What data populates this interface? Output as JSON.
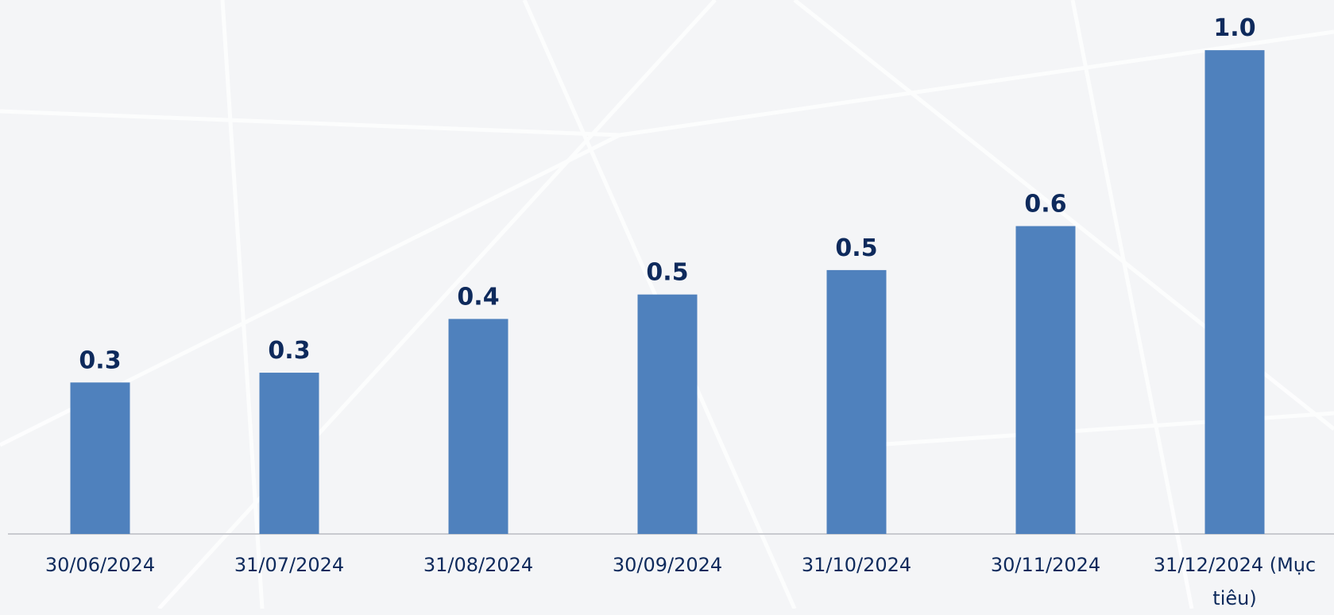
{
  "chart_data": {
    "type": "bar",
    "categories": [
      "30/06/2024",
      "31/07/2024",
      "31/08/2024",
      "30/09/2024",
      "31/10/2024",
      "30/11/2024",
      "31/12/2024 (Mục tiêu)"
    ],
    "values": [
      0.31,
      0.33,
      0.44,
      0.49,
      0.54,
      0.63,
      0.99
    ],
    "value_labels": [
      "0.3",
      "0.3",
      "0.4",
      "0.5",
      "0.5",
      "0.6",
      "1.0"
    ],
    "color": "#4f81bd",
    "ylim": [
      0,
      1
    ]
  }
}
